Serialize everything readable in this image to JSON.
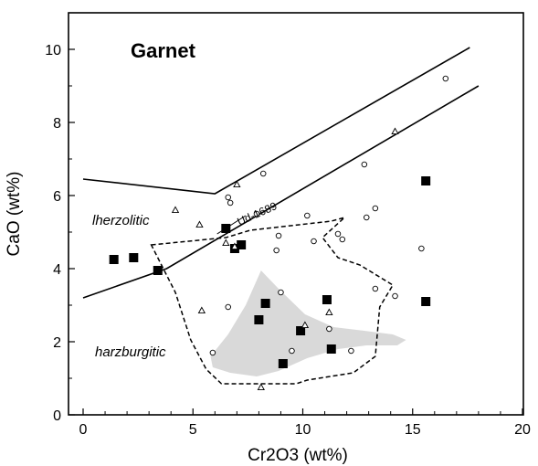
{
  "chart_data": {
    "type": "scatter",
    "title": "Garnet",
    "xlabel": "Cr2O3 (wt%)",
    "ylabel": "CaO (wt%)",
    "xlim": [
      0,
      20
    ],
    "ylim": [
      0,
      11
    ],
    "xticks": [
      0,
      5,
      10,
      15,
      20
    ],
    "yticks": [
      0,
      2,
      4,
      6,
      8,
      10
    ],
    "grid": false,
    "field_labels": {
      "lherzolitic": "lherzolitic",
      "harzburgitic": "harzburgitic"
    },
    "annotation": "Ud-1689",
    "colors": {
      "shaded_field": "#d9d9d9",
      "marks": "#000000"
    },
    "series": [
      {
        "marker": "filled-square",
        "x": [
          1.4,
          2.3,
          3.4,
          6.5,
          6.9,
          7.2,
          8.0,
          8.3,
          9.1,
          9.9,
          11.1,
          11.3,
          15.6,
          15.6
        ],
        "y": [
          4.25,
          4.3,
          3.95,
          5.1,
          4.55,
          4.65,
          2.6,
          3.05,
          1.4,
          2.3,
          3.15,
          1.8,
          6.4,
          3.1
        ]
      },
      {
        "marker": "open-circle",
        "x": [
          16.5,
          12.8,
          8.2,
          6.6,
          6.7,
          7.9,
          10.2,
          13.3,
          12.9,
          11.6,
          11.8,
          10.5,
          8.9,
          8.8,
          15.4,
          13.3,
          14.2,
          6.6,
          9.0,
          9.5,
          11.2,
          12.2,
          5.9
        ],
        "y": [
          9.2,
          6.85,
          6.6,
          5.95,
          5.8,
          5.5,
          5.45,
          5.65,
          5.4,
          4.95,
          4.8,
          4.75,
          4.9,
          4.5,
          4.55,
          3.45,
          3.25,
          2.95,
          3.35,
          1.75,
          2.35,
          1.75,
          1.7
        ]
      },
      {
        "marker": "open-triangle",
        "x": [
          14.2,
          7.0,
          4.2,
          5.3,
          6.5,
          6.9,
          5.4,
          10.1,
          11.2,
          8.1
        ],
        "y": [
          7.75,
          6.3,
          5.6,
          5.2,
          4.7,
          4.6,
          2.85,
          2.45,
          2.8,
          0.75
        ]
      }
    ],
    "lines": [
      {
        "x": [
          0,
          6.0,
          17.6
        ],
        "y": [
          6.45,
          6.05,
          10.05
        ]
      },
      {
        "x": [
          0,
          3.8,
          18.0
        ],
        "y": [
          3.2,
          4.0,
          9.0
        ]
      }
    ],
    "dashed_field": {
      "x": [
        3.1,
        6.5,
        7.6,
        11.3,
        11.9,
        10.9,
        11.6,
        12.6,
        14.1,
        13.5,
        13.3,
        12.3,
        10.2,
        9.7,
        6.3,
        5.6,
        4.9,
        4.2,
        3.1
      ],
      "y": [
        4.65,
        4.85,
        5.05,
        5.3,
        5.4,
        4.85,
        4.3,
        4.1,
        3.55,
        2.95,
        1.6,
        1.15,
        0.95,
        0.85,
        0.85,
        1.25,
        2.05,
        3.35,
        4.65
      ]
    },
    "shaded_field": {
      "x": [
        5.8,
        6.6,
        7.4,
        8.1,
        8.9,
        10.1,
        11.4,
        12.8,
        14.1,
        14.7,
        14.3,
        12.9,
        11.6,
        10.2,
        8.9,
        7.9,
        6.7,
        5.9,
        5.8
      ],
      "y": [
        1.6,
        2.2,
        3.0,
        3.95,
        3.45,
        2.75,
        2.4,
        2.3,
        2.2,
        2.05,
        1.9,
        1.9,
        1.8,
        1.55,
        1.2,
        1.05,
        1.15,
        1.3,
        1.6
      ]
    }
  }
}
